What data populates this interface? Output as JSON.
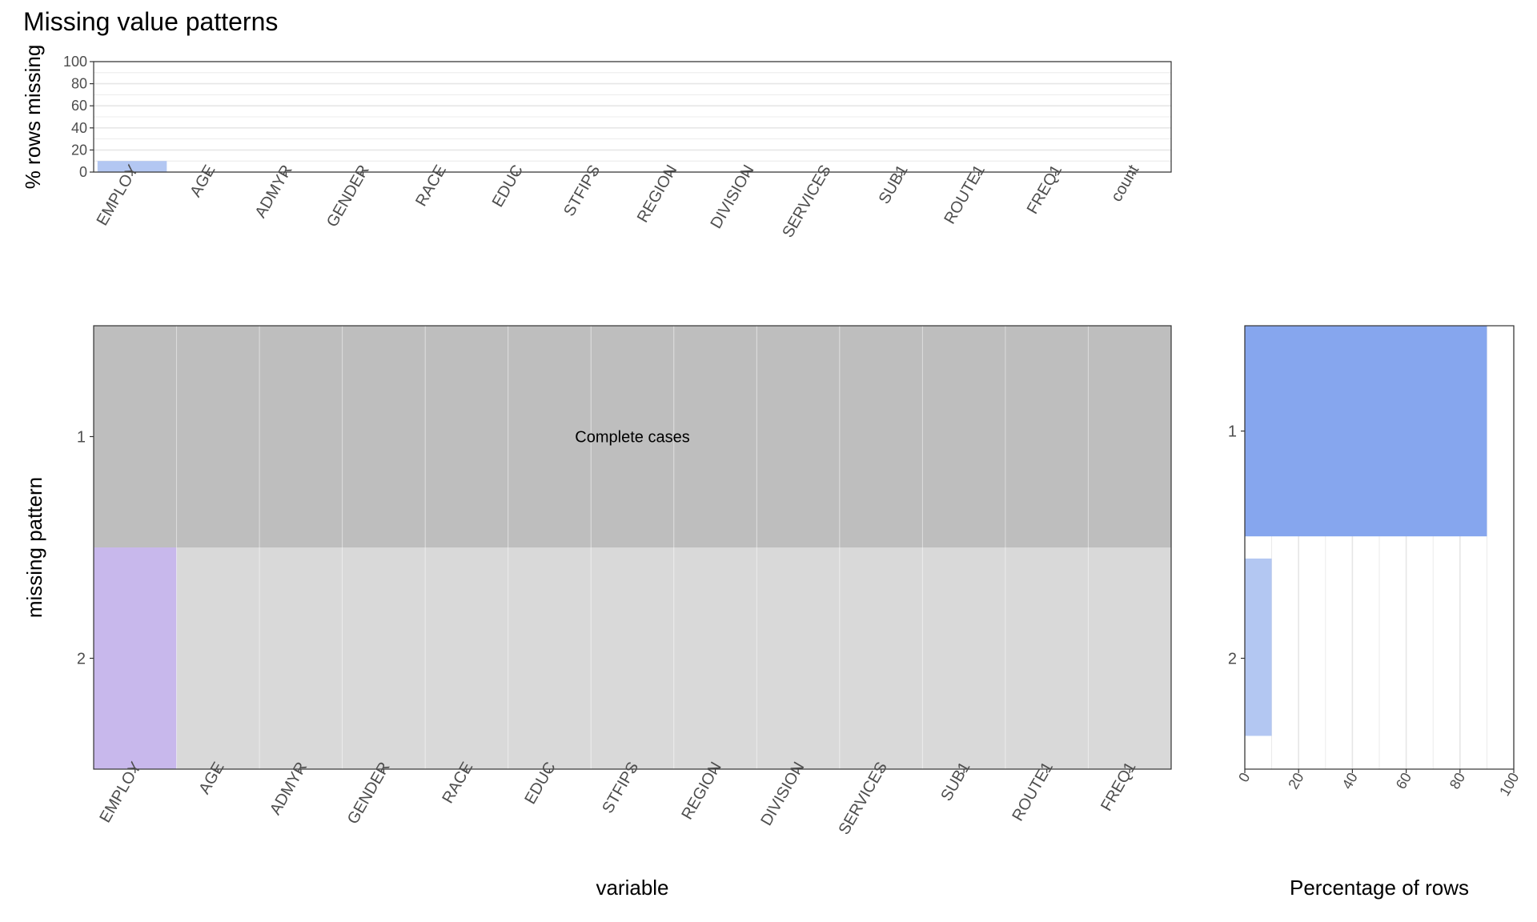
{
  "title": "Missing value patterns",
  "colors": {
    "top_bar": "#b3c7f2",
    "missing_cell": "#c8b8ec",
    "complete_cell": "#bebebe",
    "present_cell": "#d9d9d9",
    "pattern1_bar": "#86a6ee",
    "pattern2_bar": "#b3c7f2",
    "grid": "#e6e6e6",
    "axis": "#333333"
  },
  "complete_label": "Complete cases",
  "chart_data": [
    {
      "type": "bar",
      "title": "Missing value patterns",
      "xlabel": "",
      "ylabel": "% rows missing",
      "ylim": [
        0,
        100
      ],
      "yticks": [
        0,
        20,
        40,
        60,
        80,
        100
      ],
      "grid": true,
      "categories": [
        "EMPLOY",
        "AGE",
        "ADMYR",
        "GENDER",
        "RACE",
        "EDUC",
        "STFIPS",
        "REGION",
        "DIVISION",
        "SERVICES",
        "SUB1",
        "ROUTE1",
        "FREQ1",
        "count"
      ],
      "values": [
        10,
        0,
        0,
        0,
        0,
        0,
        0,
        0,
        0,
        0,
        0,
        0,
        0,
        0
      ]
    },
    {
      "type": "heatmap",
      "xlabel": "variable",
      "ylabel": "missing pattern",
      "x": [
        "EMPLOY",
        "AGE",
        "ADMYR",
        "GENDER",
        "RACE",
        "EDUC",
        "STFIPS",
        "REGION",
        "DIVISION",
        "SERVICES",
        "SUB1",
        "ROUTE1",
        "FREQ1"
      ],
      "y": [
        "1",
        "2"
      ],
      "missing": [
        [
          0,
          0,
          0,
          0,
          0,
          0,
          0,
          0,
          0,
          0,
          0,
          0,
          0
        ],
        [
          1,
          0,
          0,
          0,
          0,
          0,
          0,
          0,
          0,
          0,
          0,
          0,
          0
        ]
      ],
      "annotation": "Complete cases"
    },
    {
      "type": "bar",
      "orientation": "horizontal",
      "xlabel": "Percentage of rows",
      "ylabel": "",
      "xlim": [
        0,
        100
      ],
      "xticks": [
        0,
        20,
        40,
        60,
        80,
        100
      ],
      "grid": true,
      "categories": [
        "1",
        "2"
      ],
      "values": [
        90,
        10
      ]
    }
  ]
}
